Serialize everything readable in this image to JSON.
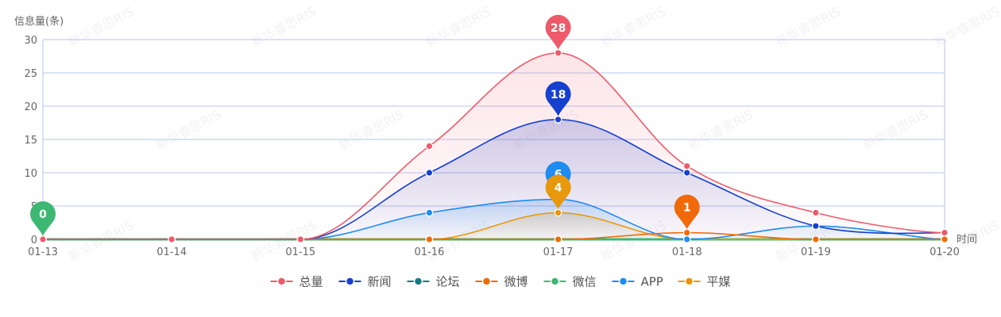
{
  "chart_data": {
    "type": "line",
    "ylabel": "信息量(条)",
    "xlabel": "时间",
    "ylim": [
      0,
      30
    ],
    "yticks": [
      0,
      5,
      10,
      15,
      20,
      25,
      30
    ],
    "categories": [
      "01-13",
      "01-14",
      "01-15",
      "01-16",
      "01-17",
      "01-18",
      "01-19",
      "01-20"
    ],
    "smooth": true,
    "grid": true,
    "legend_position": "bottom-center",
    "series": [
      {
        "name": "总量",
        "color": "#ee5a6a",
        "values": [
          0,
          0,
          0,
          14,
          28,
          11,
          4,
          1
        ],
        "area": true,
        "max_label": 28
      },
      {
        "name": "新闻",
        "color": "#1540d0",
        "values": [
          0,
          0,
          0,
          10,
          18,
          10,
          2,
          1
        ],
        "area": true,
        "max_label": 18
      },
      {
        "name": "论坛",
        "color": "#127a85",
        "values": [
          0,
          0,
          0,
          0,
          0,
          0,
          0,
          0
        ],
        "area": false
      },
      {
        "name": "微博",
        "color": "#f06a0a",
        "values": [
          0,
          0,
          0,
          0,
          0,
          1,
          0,
          0
        ],
        "area": false,
        "max_label": 1
      },
      {
        "name": "微信",
        "color": "#3db873",
        "values": [
          0,
          0,
          0,
          0,
          0,
          0,
          0,
          0
        ],
        "area": false,
        "max_label": 0
      },
      {
        "name": "APP",
        "color": "#1e8cf0",
        "values": [
          0,
          0,
          0,
          4,
          6,
          0,
          2,
          0
        ],
        "area": true,
        "max_label": 6
      },
      {
        "name": "平媒",
        "color": "#e8980c",
        "values": [
          0,
          0,
          0,
          0,
          4,
          0,
          0,
          0
        ],
        "area": true,
        "max_label": 4
      }
    ]
  },
  "watermark": {
    "text": "新华睿思RIS"
  }
}
